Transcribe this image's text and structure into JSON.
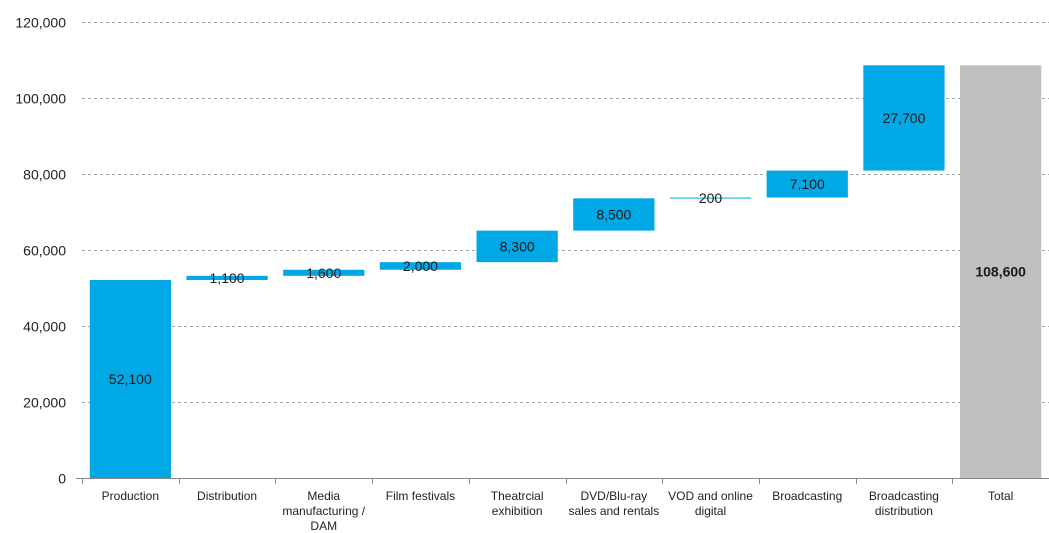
{
  "chart_data": {
    "type": "bar",
    "subtype": "waterfall",
    "title": "",
    "xlabel": "",
    "ylabel": "",
    "ylim": [
      0,
      120000
    ],
    "y_ticks": [
      "0",
      "20,000",
      "40,000",
      "60,000",
      "80,000",
      "100,000",
      "120,000"
    ],
    "y_tick_values": [
      0,
      20000,
      40000,
      60000,
      80000,
      100000,
      120000
    ],
    "grid": true,
    "legend": "none",
    "colors": {
      "step": "#00a8e6",
      "total": "#bfbfbf",
      "label": "#1a1a1a",
      "grid": "#a6a6a6"
    },
    "categories": [
      [
        "Production"
      ],
      [
        "Distribution"
      ],
      [
        "Media",
        "manufacturing /",
        "DAM"
      ],
      [
        "Film festivals"
      ],
      [
        "Theatrcial",
        "exhibition"
      ],
      [
        "DVD/Blu-ray",
        "sales and rentals"
      ],
      [
        "VOD and online",
        "digital"
      ],
      [
        "Broadcasting"
      ],
      [
        "Broadcasting",
        "distribution"
      ],
      [
        "Total"
      ]
    ],
    "values": [
      52100,
      1100,
      1600,
      2000,
      8300,
      8500,
      200,
      7100,
      27700,
      108600
    ],
    "value_labels": [
      "52,100",
      "1,100",
      "1,600",
      "2,000",
      "8,300",
      "8,500",
      "200",
      "7,100",
      "27,700",
      "108,600"
    ],
    "is_total": [
      false,
      false,
      false,
      false,
      false,
      false,
      false,
      false,
      false,
      true
    ]
  }
}
